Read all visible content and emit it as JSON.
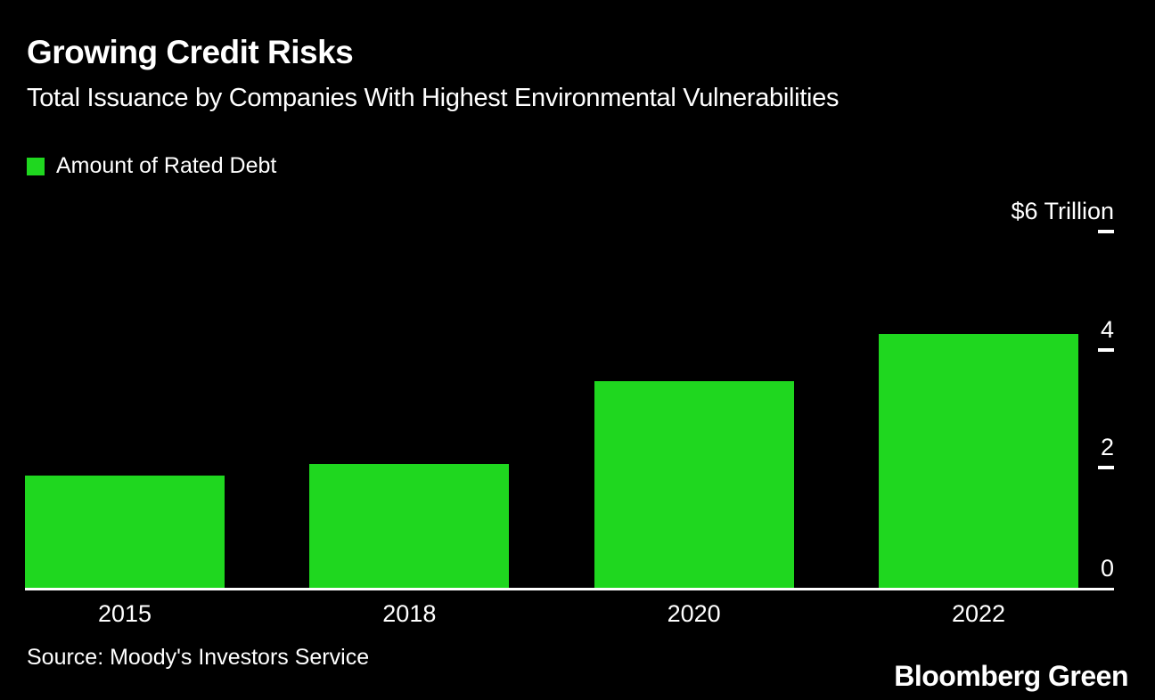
{
  "title": "Growing Credit Risks",
  "subtitle": "Total Issuance by Companies With Highest Environmental Vulnerabilities",
  "legend": {
    "label": "Amount of Rated Debt"
  },
  "source": "Source: Moody's Investors Service",
  "brand": "Bloomberg Green",
  "colors": {
    "background": "#000000",
    "bar": "#1fd71f",
    "text": "#ffffff",
    "axis": "#ffffff"
  },
  "chart_data": {
    "type": "bar",
    "categories": [
      "2015",
      "2018",
      "2020",
      "2022"
    ],
    "values": [
      1.9,
      2.1,
      3.5,
      4.3
    ],
    "unit": "USD trillions",
    "title": "Growing Credit Risks",
    "xlabel": "",
    "ylabel": "$ Trillion",
    "ylim": [
      0,
      6
    ],
    "yticks": [
      {
        "value": 6,
        "label": "$6 Trillion"
      },
      {
        "value": 4,
        "label": "4"
      },
      {
        "value": 2,
        "label": "2"
      },
      {
        "value": 0,
        "label": "0"
      }
    ],
    "legend_entries": [
      "Amount of Rated Debt"
    ],
    "legend_position": "top-left",
    "grid": false,
    "axis_side": "right"
  }
}
